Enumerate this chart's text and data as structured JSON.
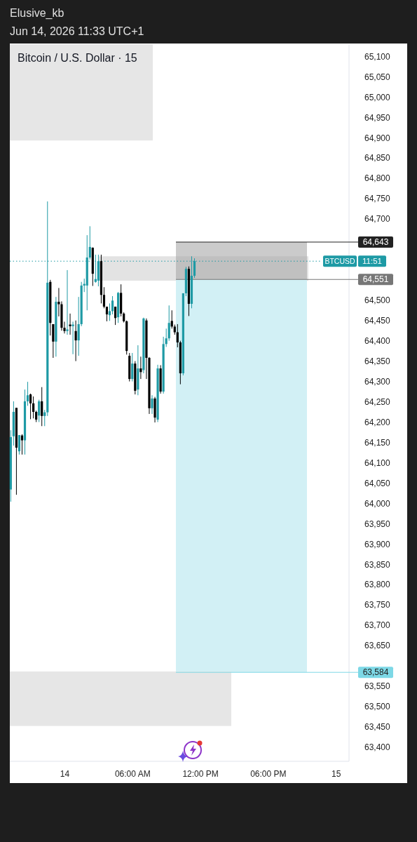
{
  "chart_data": {
    "type": "candlestick",
    "title": "Bitcoin / U.S. Dollar · 15",
    "subtitle": "Jun 14, 2026 11:33 UTC+1",
    "annotations": [
      "Elusive_kb",
      "11:51"
    ],
    "x": [
      "2026-06-13T19:15",
      "2026-06-13T19:30",
      "2026-06-13T19:45",
      "2026-06-13T20:00",
      "2026-06-13T20:15",
      "2026-06-13T20:30",
      "2026-06-13T20:45",
      "2026-06-13T21:00",
      "2026-06-13T21:15",
      "2026-06-13T21:30",
      "2026-06-13T21:45",
      "2026-06-13T22:00",
      "2026-06-13T22:15",
      "2026-06-13T22:30",
      "2026-06-13T22:45",
      "2026-06-13T23:00",
      "2026-06-13T23:15",
      "2026-06-13T23:30",
      "2026-06-13T23:45",
      "2026-06-14T00:00",
      "2026-06-14T00:15",
      "2026-06-14T00:30",
      "2026-06-14T00:45",
      "2026-06-14T01:00",
      "2026-06-14T01:15",
      "2026-06-14T01:30",
      "2026-06-14T01:45",
      "2026-06-14T02:00",
      "2026-06-14T02:15",
      "2026-06-14T02:30",
      "2026-06-14T02:45",
      "2026-06-14T03:00",
      "2026-06-14T03:15",
      "2026-06-14T03:30",
      "2026-06-14T03:45",
      "2026-06-14T04:00",
      "2026-06-14T04:15",
      "2026-06-14T04:30",
      "2026-06-14T04:45",
      "2026-06-14T05:00",
      "2026-06-14T05:15",
      "2026-06-14T05:30",
      "2026-06-14T05:45",
      "2026-06-14T06:00",
      "2026-06-14T06:15",
      "2026-06-14T06:30",
      "2026-06-14T06:45",
      "2026-06-14T07:00",
      "2026-06-14T07:15",
      "2026-06-14T07:30",
      "2026-06-14T07:45",
      "2026-06-14T08:00",
      "2026-06-14T08:15",
      "2026-06-14T08:30",
      "2026-06-14T08:45",
      "2026-06-14T09:00",
      "2026-06-14T09:15",
      "2026-06-14T09:30",
      "2026-06-14T09:45",
      "2026-06-14T10:00",
      "2026-06-14T10:15",
      "2026-06-14T10:30",
      "2026-06-14T10:45",
      "2026-06-14T11:00",
      "2026-06-14T11:15",
      "2026-06-14T11:30"
    ],
    "ohlc": [
      [
        64034,
        64180,
        64004,
        64163
      ],
      [
        64165,
        64251,
        64142,
        64225
      ],
      [
        64235,
        64235,
        64021,
        64137
      ],
      [
        64128,
        64168,
        64120,
        64168
      ],
      [
        64167,
        64170,
        64120,
        64155
      ],
      [
        64155,
        64280,
        64120,
        64251
      ],
      [
        64251,
        64299,
        64240,
        64266
      ],
      [
        64268,
        64270,
        64207,
        64246
      ],
      [
        64246,
        64263,
        64209,
        64225
      ],
      [
        64225,
        64228,
        64200,
        64206
      ],
      [
        64216,
        64255,
        64200,
        64251
      ],
      [
        64251,
        64286,
        64190,
        64215
      ],
      [
        64215,
        64230,
        64190,
        64224
      ],
      [
        64224,
        64743,
        64215,
        64543
      ],
      [
        64545,
        64550,
        64413,
        64444
      ],
      [
        64441,
        64441,
        64358,
        64398
      ],
      [
        64398,
        64508,
        64361,
        64496
      ],
      [
        64496,
        64530,
        64460,
        64490
      ],
      [
        64490,
        64497,
        64425,
        64432
      ],
      [
        64432,
        64447,
        64418,
        64424
      ],
      [
        64424,
        64574,
        64415,
        64428
      ],
      [
        64440,
        64467,
        64415,
        64436
      ],
      [
        64436,
        64447,
        64367,
        64440
      ],
      [
        64424,
        64450,
        64350,
        64401
      ],
      [
        64401,
        64508,
        64363,
        64441
      ],
      [
        64441,
        64545,
        64436,
        64536
      ],
      [
        64536,
        64553,
        64520,
        64540
      ],
      [
        64536,
        64660,
        64475,
        64605
      ],
      [
        64605,
        64682,
        64600,
        64631
      ],
      [
        64629,
        64630,
        64535,
        64565
      ],
      [
        64545,
        64612,
        64543,
        64552
      ],
      [
        64548,
        64612,
        64534,
        64596
      ],
      [
        64596,
        64612,
        64492,
        64513
      ],
      [
        64513,
        64532,
        64480,
        64484
      ],
      [
        64484,
        64484,
        64448,
        64465
      ],
      [
        64463,
        64492,
        64449,
        64473
      ],
      [
        64473,
        64510,
        64465,
        64499
      ],
      [
        64484,
        64484,
        64439,
        64456
      ],
      [
        64458,
        64520,
        64444,
        64518
      ],
      [
        64518,
        64539,
        64460,
        64467
      ],
      [
        64467,
        64470,
        64445,
        64448
      ],
      [
        64448,
        64450,
        64366,
        64375
      ],
      [
        64363,
        64370,
        64300,
        64306
      ],
      [
        64306,
        64370,
        64300,
        64344
      ],
      [
        64344,
        64350,
        64268,
        64277
      ],
      [
        64280,
        64389,
        64266,
        64332
      ],
      [
        64332,
        64361,
        64306,
        64323
      ],
      [
        64328,
        64457,
        64320,
        64455
      ],
      [
        64450,
        64455,
        64306,
        64358
      ],
      [
        64358,
        64360,
        64220,
        64234
      ],
      [
        64234,
        64266,
        64220,
        64258
      ],
      [
        64258,
        64262,
        64199,
        64211
      ],
      [
        64206,
        64341,
        64200,
        64332
      ],
      [
        64332,
        64340,
        64270,
        64275
      ],
      [
        64275,
        64410,
        64270,
        64392
      ],
      [
        64392,
        64430,
        64385,
        64406
      ],
      [
        64406,
        64487,
        64400,
        64444
      ],
      [
        64449,
        64475,
        64430,
        64435
      ],
      [
        64435,
        64440,
        64415,
        64421
      ],
      [
        64421,
        64441,
        64384,
        64396
      ],
      [
        64396,
        64400,
        64293,
        64320
      ],
      [
        64320,
        64517,
        64315,
        64517
      ],
      [
        64517,
        64582,
        64510,
        64577
      ],
      [
        64577,
        64583,
        64461,
        64491
      ],
      [
        64491,
        64608,
        64480,
        64560
      ],
      [
        64560,
        64603,
        64555,
        64596
      ]
    ],
    "colors": [
      "#1e9aa5",
      "#1e9aa5",
      "#000000",
      "#1e9aa5",
      "#000000",
      "#1e9aa5",
      "#1e9aa5",
      "#000000",
      "#000000",
      "#000000",
      "#1e9aa5",
      "#000000",
      "#1e9aa5",
      "#1e9aa5",
      "#000000",
      "#000000",
      "#1e9aa5",
      "#000000",
      "#000000",
      "#000000",
      "#1e9aa5",
      "#000000",
      "#1e9aa5",
      "#000000",
      "#1e9aa5",
      "#1e9aa5",
      "#1e9aa5",
      "#1e9aa5",
      "#1e9aa5",
      "#000000",
      "#1e9aa5",
      "#1e9aa5",
      "#000000",
      "#000000",
      "#000000",
      "#1e9aa5",
      "#1e9aa5",
      "#000000",
      "#1e9aa5",
      "#000000",
      "#000000",
      "#000000",
      "#000000",
      "#1e9aa5",
      "#000000",
      "#1e9aa5",
      "#000000",
      "#1e9aa5",
      "#000000",
      "#000000",
      "#1e9aa5",
      "#000000",
      "#1e9aa5",
      "#000000",
      "#1e9aa5",
      "#1e9aa5",
      "#1e9aa5",
      "#000000",
      "#000000",
      "#000000",
      "#000000",
      "#1e9aa5",
      "#1e9aa5",
      "#000000",
      "#1e9aa5",
      "#1e9aa5"
    ],
    "xlim": [
      "2026-06-13T19:10",
      "2026-06-15T01:10"
    ],
    "xticks": [
      {
        "value": "2026-06-14T00:00",
        "label": "14"
      },
      {
        "value": "2026-06-14T06:00",
        "label": "06:00 AM"
      },
      {
        "value": "2026-06-14T12:00",
        "label": "12:00 PM"
      },
      {
        "value": "2026-06-14T18:00",
        "label": "06:00 PM"
      },
      {
        "value": "2026-06-15T00:00",
        "label": "15"
      }
    ],
    "ylim": [
      63365,
      65130
    ],
    "yticks": [
      {
        "value": 63400,
        "label": "63,400"
      },
      {
        "value": 63450,
        "label": "63,450"
      },
      {
        "value": 63500,
        "label": "63,500"
      },
      {
        "value": 63550,
        "label": "63,550"
      },
      {
        "value": 63650,
        "label": "63,650"
      },
      {
        "value": 63700,
        "label": "63,700"
      },
      {
        "value": 63750,
        "label": "63,750"
      },
      {
        "value": 63800,
        "label": "63,800"
      },
      {
        "value": 63850,
        "label": "63,850"
      },
      {
        "value": 63900,
        "label": "63,900"
      },
      {
        "value": 63950,
        "label": "63,950"
      },
      {
        "value": 64000,
        "label": "64,000"
      },
      {
        "value": 64050,
        "label": "64,050"
      },
      {
        "value": 64100,
        "label": "64,100"
      },
      {
        "value": 64150,
        "label": "64,150"
      },
      {
        "value": 64200,
        "label": "64,200"
      },
      {
        "value": 64250,
        "label": "64,250"
      },
      {
        "value": 64300,
        "label": "64,300"
      },
      {
        "value": 64350,
        "label": "64,350"
      },
      {
        "value": 64400,
        "label": "64,400"
      },
      {
        "value": 64450,
        "label": "64,450"
      },
      {
        "value": 64500,
        "label": "64,500"
      },
      {
        "value": 64700,
        "label": "64,700"
      },
      {
        "value": 64750,
        "label": "64,750"
      },
      {
        "value": 64800,
        "label": "64,800"
      },
      {
        "value": 64850,
        "label": "64,850"
      },
      {
        "value": 64900,
        "label": "64,900"
      },
      {
        "value": 64950,
        "label": "64,950"
      },
      {
        "value": 65000,
        "label": "65,000"
      },
      {
        "value": 65050,
        "label": "65,050"
      },
      {
        "value": 65100,
        "label": "65,100"
      }
    ],
    "bands": [
      {
        "axis": "y",
        "from": 64893,
        "to": 65130,
        "color": "#e6e6e6"
      },
      {
        "axis": "y",
        "from": 64548,
        "to": 64608,
        "color": "#e3e3e3"
      },
      {
        "axis": "y",
        "from": 64551,
        "to": 64643,
        "color": "#a9a9a9"
      },
      {
        "axis": "y",
        "from": 63584,
        "to": 64551,
        "color": "#d2f0f5"
      },
      {
        "axis": "y",
        "from": 63452,
        "to": 63586,
        "color": "#e6e6e6"
      }
    ],
    "ref_lines": [
      {
        "axis": "y",
        "value": 64643,
        "label": "64,643",
        "color": "#222222",
        "line_style": "solid"
      },
      {
        "axis": "y",
        "value": 64596,
        "label": "BTCUSD",
        "color": "#1e9aa5",
        "line_style": "dotted"
      },
      {
        "axis": "y",
        "value": 64551,
        "label": "64,551",
        "color": "#777777",
        "line_style": "solid"
      },
      {
        "axis": "y",
        "value": 63584,
        "label": "63,584",
        "color": "#7dd8e6",
        "line_style": "solid"
      }
    ],
    "grid": false
  }
}
